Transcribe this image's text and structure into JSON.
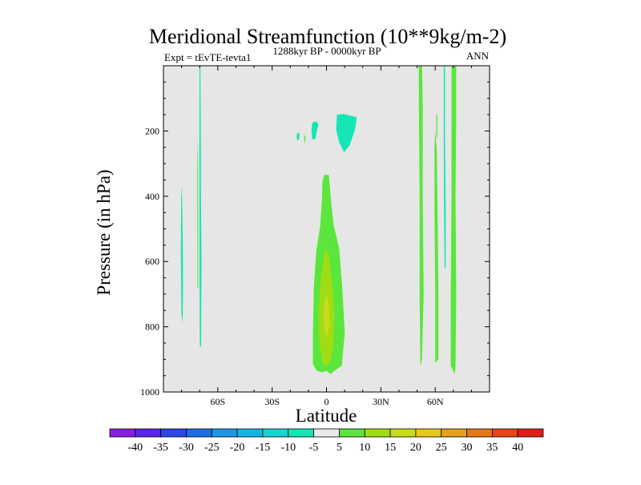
{
  "chart_data": {
    "type": "contour",
    "title": "Meridional Streamfunction (10**9kg/m-2)",
    "subtitle_left": "Expt = tEvTE-tevta1",
    "subtitle_center": "1288kyr BP - 0000kyr BP",
    "subtitle_right": "ANN",
    "xlabel": "Latitude",
    "ylabel": "Pressure (in hPa)",
    "xlim": [
      -90,
      90
    ],
    "ylim": [
      1000,
      0
    ],
    "x_ticks": [
      {
        "value": -60,
        "label": "60S"
      },
      {
        "value": -30,
        "label": "30S"
      },
      {
        "value": 0,
        "label": "0"
      },
      {
        "value": 30,
        "label": "30N"
      },
      {
        "value": 60,
        "label": "60N"
      }
    ],
    "y_ticks": [
      {
        "value": 200,
        "label": "200"
      },
      {
        "value": 400,
        "label": "400"
      },
      {
        "value": 600,
        "label": "600"
      },
      {
        "value": 800,
        "label": "800"
      },
      {
        "value": 1000,
        "label": "1000"
      }
    ],
    "background_color": "#e6e6e6",
    "levels": [
      -40,
      -35,
      -30,
      -25,
      -20,
      -15,
      -10,
      -5,
      5,
      10,
      15,
      20,
      25,
      30,
      35,
      40
    ],
    "colorbar_colors": [
      "#8a1ee0",
      "#5a23e6",
      "#2d46e6",
      "#1a6ee6",
      "#1a96e6",
      "#14b4e6",
      "#19d2d2",
      "#14e6b4",
      "#eaeaea",
      "#5ae63c",
      "#a0dc14",
      "#c8dc1e",
      "#e6c81e",
      "#e6a01e",
      "#e67814",
      "#e64614",
      "#dc1e14"
    ],
    "regions": [
      {
        "color": "#14e6b4",
        "points": [
          [
            -79.8,
            370
          ],
          [
            -79.5,
            470
          ],
          [
            -79.3,
            560
          ],
          [
            -79.2,
            680
          ],
          [
            -79.4,
            790
          ],
          [
            -80.1,
            760
          ],
          [
            -80.4,
            560
          ],
          [
            -80.2,
            400
          ]
        ]
      },
      {
        "color": "#5ae63c",
        "points": [
          [
            -71.0,
            220
          ],
          [
            -70.9,
            320
          ],
          [
            -70.8,
            480
          ],
          [
            -70.8,
            680
          ],
          [
            -71.3,
            680
          ],
          [
            -71.3,
            480
          ],
          [
            -71.4,
            320
          ]
        ]
      },
      {
        "color": "#14e6b4",
        "points": [
          [
            -69.6,
            0
          ],
          [
            -69.4,
            200
          ],
          [
            -69.3,
            400
          ],
          [
            -69.0,
            600
          ],
          [
            -69.2,
            860
          ],
          [
            -69.9,
            860
          ],
          [
            -70.1,
            600
          ],
          [
            -70.2,
            300
          ],
          [
            -70.1,
            0
          ]
        ]
      },
      {
        "color": "#5ae63c",
        "points": [
          [
            -12.3,
            210
          ],
          [
            -11.6,
            220
          ],
          [
            -11.8,
            240
          ],
          [
            -12.4,
            225
          ]
        ]
      },
      {
        "color": "#14e6b4",
        "points": [
          [
            -16.2,
            208
          ],
          [
            -15.1,
            205
          ],
          [
            -14.9,
            222
          ],
          [
            -16.0,
            230
          ],
          [
            -16.6,
            218
          ]
        ]
      },
      {
        "color": "#14e6b4",
        "points": [
          [
            -7.9,
            175
          ],
          [
            -5.7,
            170
          ],
          [
            -4.4,
            180
          ],
          [
            -5.3,
            200
          ],
          [
            -6.2,
            225
          ],
          [
            -7.9,
            225
          ],
          [
            -8.3,
            200
          ]
        ]
      },
      {
        "color": "#14e6b4",
        "points": [
          [
            5.7,
            150
          ],
          [
            9.7,
            148
          ],
          [
            16.7,
            158
          ],
          [
            15.8,
            195
          ],
          [
            12.7,
            245
          ],
          [
            9.7,
            265
          ],
          [
            7.0,
            235
          ],
          [
            5.3,
            195
          ],
          [
            5.7,
            160
          ]
        ]
      },
      {
        "color": "#5ae63c",
        "points": [
          [
            -1.3,
            335
          ],
          [
            1.3,
            335
          ],
          [
            2.6,
            420
          ],
          [
            4.0,
            490
          ],
          [
            7.0,
            560
          ],
          [
            8.8,
            690
          ],
          [
            10.1,
            820
          ],
          [
            8.4,
            920
          ],
          [
            4.4,
            935
          ],
          [
            2.2,
            945
          ],
          [
            0.0,
            935
          ],
          [
            -2.2,
            940
          ],
          [
            -5.3,
            935
          ],
          [
            -7.5,
            915
          ],
          [
            -7.5,
            820
          ],
          [
            -7.0,
            680
          ],
          [
            -5.7,
            570
          ],
          [
            -3.5,
            490
          ],
          [
            -2.6,
            420
          ],
          [
            -2.2,
            355
          ]
        ]
      },
      {
        "color": "#a0dc14",
        "points": [
          [
            -0.4,
            560
          ],
          [
            1.3,
            580
          ],
          [
            3.1,
            660
          ],
          [
            4.4,
            750
          ],
          [
            4.0,
            850
          ],
          [
            2.2,
            910
          ],
          [
            0.0,
            920
          ],
          [
            -2.2,
            910
          ],
          [
            -4.0,
            850
          ],
          [
            -4.4,
            750
          ],
          [
            -3.1,
            650
          ],
          [
            -1.3,
            580
          ]
        ]
      },
      {
        "color": "#c8dc1e",
        "points": [
          [
            0.0,
            700
          ],
          [
            1.3,
            730
          ],
          [
            1.8,
            790
          ],
          [
            0.4,
            830
          ],
          [
            -1.3,
            810
          ],
          [
            -1.8,
            760
          ],
          [
            -0.9,
            720
          ]
        ]
      },
      {
        "color": "#5ae63c",
        "points": [
          [
            50.9,
            0
          ],
          [
            52.7,
            0
          ],
          [
            53.1,
            120
          ],
          [
            53.1,
            400
          ],
          [
            53.6,
            700
          ],
          [
            52.7,
            900
          ],
          [
            51.8,
            920
          ],
          [
            51.4,
            700
          ],
          [
            51.4,
            400
          ],
          [
            51.0,
            120
          ]
        ]
      },
      {
        "color": "#5ae63c",
        "points": [
          [
            59.6,
            240
          ],
          [
            60.0,
            200
          ],
          [
            60.9,
            260
          ],
          [
            61.3,
            450
          ],
          [
            61.8,
            700
          ],
          [
            61.8,
            900
          ],
          [
            60.0,
            910
          ],
          [
            60.0,
            700
          ],
          [
            59.6,
            450
          ]
        ]
      },
      {
        "color": "#5ae63c",
        "points": [
          [
            60.5,
            150
          ],
          [
            61.1,
            150
          ],
          [
            61.2,
            220
          ],
          [
            60.7,
            220
          ]
        ]
      },
      {
        "color": "#14e6b4",
        "points": [
          [
            64.7,
            0
          ],
          [
            65.4,
            0
          ],
          [
            65.4,
            220
          ],
          [
            65.8,
            450
          ],
          [
            65.8,
            620
          ],
          [
            65.2,
            620
          ],
          [
            64.9,
            450
          ],
          [
            64.7,
            220
          ]
        ]
      },
      {
        "color": "#5ae63c",
        "points": [
          [
            69.0,
            0
          ],
          [
            71.6,
            0
          ],
          [
            71.6,
            150
          ],
          [
            71.2,
            400
          ],
          [
            71.6,
            700
          ],
          [
            71.2,
            920
          ],
          [
            70.8,
            945
          ],
          [
            68.6,
            920
          ],
          [
            68.6,
            700
          ],
          [
            69.0,
            400
          ],
          [
            69.0,
            150
          ]
        ]
      }
    ]
  }
}
